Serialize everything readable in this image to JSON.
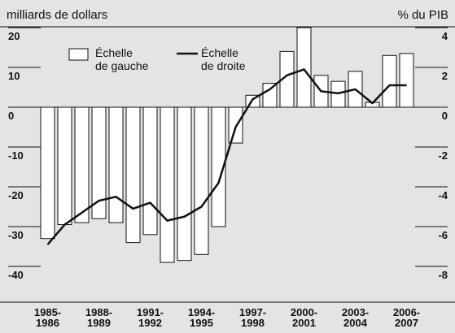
{
  "chart_data": {
    "type": "bar",
    "y_axis_label": "milliards de dollars",
    "y2_axis_label": "% du PIB",
    "categories": [
      "1985-\n1986",
      null,
      null,
      "1988-\n1989",
      null,
      null,
      "1991-\n1992",
      null,
      null,
      "1994-\n1995",
      null,
      null,
      "1997-\n1998",
      null,
      null,
      "2000-\n2001",
      null,
      null,
      "2003-\n2004",
      null,
      null,
      "2006-\n2007"
    ],
    "series": [
      {
        "name": "Échelle\nde gauche",
        "type": "bar",
        "color": "#ffffff",
        "values": [
          -33,
          -29.5,
          -29,
          -28,
          -29,
          -34,
          -32,
          -39,
          -38.5,
          -37,
          -30,
          -9,
          3,
          6,
          14,
          20,
          8,
          6.5,
          9,
          1.2,
          13,
          13.5
        ]
      },
      {
        "name": "Échelle\nde droite",
        "type": "line",
        "axis": "y2",
        "color": "#111111",
        "values": [
          -6.9,
          -5.9,
          -5.3,
          -4.7,
          -4.5,
          -5.1,
          -4.8,
          -5.7,
          -5.5,
          -5.0,
          -3.8,
          -1.0,
          0.4,
          0.9,
          1.6,
          1.9,
          0.8,
          0.7,
          0.9,
          0.2,
          1.1,
          1.1
        ]
      }
    ],
    "ylim": [
      -40,
      20
    ],
    "yticks": [
      20,
      10,
      0,
      -10,
      -20,
      -30,
      -40
    ],
    "y2lim": [
      -8,
      4
    ],
    "y2ticks": [
      4,
      2,
      0,
      -2,
      -4,
      -6,
      -8
    ]
  }
}
